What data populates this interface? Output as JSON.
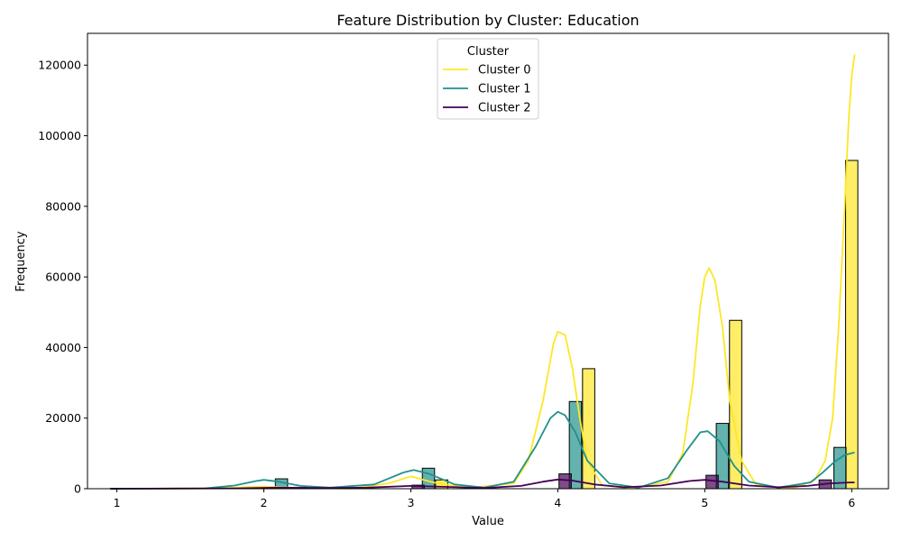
{
  "chart_data": {
    "type": "bar",
    "title": "Feature Distribution by Cluster: Education",
    "xlabel": "Value",
    "ylabel": "Frequency",
    "xlim": [
      0.8,
      6.25
    ],
    "ylim": [
      0,
      129000
    ],
    "x_ticks": [
      1,
      2,
      3,
      4,
      5,
      6
    ],
    "x_tick_labels": [
      "1",
      "2",
      "3",
      "4",
      "5",
      "6"
    ],
    "y_ticks": [
      0,
      20000,
      40000,
      60000,
      80000,
      100000,
      120000
    ],
    "y_tick_labels": [
      "0",
      "20000",
      "40000",
      "60000",
      "80000",
      "100000",
      "120000"
    ],
    "legend": {
      "title": "Cluster",
      "position": "upper-center"
    },
    "bin_width": 0.0833,
    "series": [
      {
        "name": "Cluster 0",
        "color": "#fde725",
        "bins": [
          {
            "x": 1.0,
            "value": 50
          },
          {
            "x": 2.25,
            "value": 400
          },
          {
            "x": 3.21,
            "value": 2500
          },
          {
            "x": 4.21,
            "value": 34000
          },
          {
            "x": 5.21,
            "value": 47700
          },
          {
            "x": 6.0,
            "value": 93000
          }
        ],
        "kde": [
          [
            1.0,
            0
          ],
          [
            1.7,
            150
          ],
          [
            2.0,
            600
          ],
          [
            2.3,
            150
          ],
          [
            2.6,
            50
          ],
          [
            2.85,
            1500
          ],
          [
            3.0,
            3500
          ],
          [
            3.15,
            1800
          ],
          [
            3.4,
            200
          ],
          [
            3.7,
            1500
          ],
          [
            3.8,
            8000
          ],
          [
            3.9,
            25000
          ],
          [
            3.97,
            41000
          ],
          [
            4.0,
            44500
          ],
          [
            4.05,
            43500
          ],
          [
            4.1,
            34000
          ],
          [
            4.15,
            20000
          ],
          [
            4.2,
            8000
          ],
          [
            4.3,
            1000
          ],
          [
            4.5,
            100
          ],
          [
            4.75,
            2000
          ],
          [
            4.85,
            10000
          ],
          [
            4.92,
            30000
          ],
          [
            4.97,
            52000
          ],
          [
            5.0,
            60000
          ],
          [
            5.03,
            62500
          ],
          [
            5.07,
            59000
          ],
          [
            5.12,
            46000
          ],
          [
            5.17,
            25000
          ],
          [
            5.25,
            8000
          ],
          [
            5.35,
            1000
          ],
          [
            5.6,
            100
          ],
          [
            5.75,
            2500
          ],
          [
            5.82,
            8000
          ],
          [
            5.87,
            20000
          ],
          [
            5.91,
            45000
          ],
          [
            5.95,
            78000
          ],
          [
            5.98,
            105000
          ],
          [
            6.0,
            117000
          ],
          [
            6.02,
            123000
          ]
        ]
      },
      {
        "name": "Cluster 1",
        "color": "#21918c",
        "bins": [
          {
            "x": 1.0,
            "value": 100
          },
          {
            "x": 2.12,
            "value": 2800
          },
          {
            "x": 3.12,
            "value": 5800
          },
          {
            "x": 4.12,
            "value": 24700
          },
          {
            "x": 5.12,
            "value": 18500
          },
          {
            "x": 5.92,
            "value": 11700
          }
        ],
        "kde": [
          [
            1.0,
            0
          ],
          [
            1.6,
            100
          ],
          [
            1.8,
            900
          ],
          [
            1.95,
            2200
          ],
          [
            2.0,
            2500
          ],
          [
            2.1,
            2000
          ],
          [
            2.25,
            800
          ],
          [
            2.45,
            300
          ],
          [
            2.75,
            1200
          ],
          [
            2.95,
            4600
          ],
          [
            3.02,
            5300
          ],
          [
            3.12,
            4300
          ],
          [
            3.3,
            1200
          ],
          [
            3.5,
            300
          ],
          [
            3.7,
            2000
          ],
          [
            3.85,
            12000
          ],
          [
            3.95,
            20000
          ],
          [
            4.0,
            21800
          ],
          [
            4.05,
            20800
          ],
          [
            4.12,
            16000
          ],
          [
            4.2,
            8000
          ],
          [
            4.35,
            1500
          ],
          [
            4.55,
            300
          ],
          [
            4.75,
            3000
          ],
          [
            4.88,
            11000
          ],
          [
            4.97,
            16000
          ],
          [
            5.02,
            16300
          ],
          [
            5.1,
            13500
          ],
          [
            5.2,
            6500
          ],
          [
            5.3,
            2000
          ],
          [
            5.5,
            300
          ],
          [
            5.72,
            1800
          ],
          [
            5.8,
            4500
          ],
          [
            5.88,
            7500
          ],
          [
            5.95,
            9500
          ],
          [
            6.02,
            10300
          ]
        ]
      },
      {
        "name": "Cluster 2",
        "color": "#440154",
        "bins": [
          {
            "x": 1.0,
            "value": 30
          },
          {
            "x": 2.2,
            "value": 200
          },
          {
            "x": 3.05,
            "value": 1000
          },
          {
            "x": 4.05,
            "value": 4200
          },
          {
            "x": 5.05,
            "value": 3800
          },
          {
            "x": 5.82,
            "value": 2500
          }
        ],
        "kde": [
          [
            1.0,
            0
          ],
          [
            1.8,
            100
          ],
          [
            2.1,
            300
          ],
          [
            2.4,
            200
          ],
          [
            2.7,
            300
          ],
          [
            3.0,
            800
          ],
          [
            3.25,
            500
          ],
          [
            3.5,
            200
          ],
          [
            3.75,
            800
          ],
          [
            3.9,
            2000
          ],
          [
            4.0,
            2600
          ],
          [
            4.1,
            2300
          ],
          [
            4.25,
            1200
          ],
          [
            4.45,
            400
          ],
          [
            4.7,
            900
          ],
          [
            4.9,
            2200
          ],
          [
            5.0,
            2500
          ],
          [
            5.12,
            2000
          ],
          [
            5.3,
            900
          ],
          [
            5.5,
            400
          ],
          [
            5.7,
            800
          ],
          [
            5.85,
            1500
          ],
          [
            6.0,
            1800
          ],
          [
            6.02,
            1750
          ]
        ]
      }
    ]
  }
}
